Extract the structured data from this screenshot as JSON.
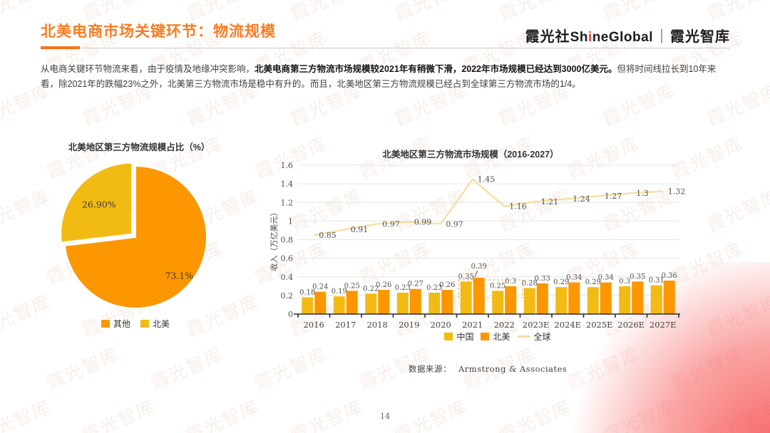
{
  "header": {
    "title": "北美电商市场关键环节：物流规模",
    "logo": {
      "cn": "霞光社",
      "en_pre": "Sh",
      "en_i": "i",
      "en_post": "neGlobal",
      "sep": "｜",
      "suffix": "霞光智库"
    }
  },
  "intro": {
    "pre": "从电商关键环节物流来看，由于疫情及地缘冲突影响，",
    "bold": "北美电商第三方物流市场规模较2021年有稍微下滑，2022年市场规模已经达到3000亿美元。",
    "post": "但将时间线拉长到10年来看，除2021年的跌幅23%之外，北美第三方物流市场是稳中有升的。而且，北美地区第三方物流规模已经占到全球第三方物流市场的1/4。"
  },
  "chart_data": [
    {
      "type": "pie",
      "title": "北美地区第三方物流规模占比（%）",
      "slices": [
        {
          "label": "其他",
          "value": 73.1,
          "display": "73.1%",
          "color": "#FC9601",
          "exploded": false
        },
        {
          "label": "北美",
          "value": 26.9,
          "display": "26.90%",
          "color": "#F2BB14",
          "exploded": true
        }
      ],
      "legend_position": "bottom"
    },
    {
      "type": "bar+line",
      "title": "北美地区第三方物流市场规模（2016-2027）",
      "ylabel": "收入（万亿美元）",
      "ylim": [
        0,
        1.6
      ],
      "ytick_step": 0.2,
      "grid": true,
      "legend_position": "bottom",
      "categories": [
        "2016",
        "2017",
        "2018",
        "2019",
        "2020",
        "2021",
        "2022",
        "2023E",
        "2024E",
        "2025E",
        "2026E",
        "2027E"
      ],
      "series": [
        {
          "name": "中国",
          "type": "bar",
          "color": "#F2BB14",
          "values": [
            0.18,
            0.19,
            0.22,
            0.23,
            0.23,
            0.35,
            0.25,
            0.28,
            0.29,
            0.29,
            0.3,
            0.31
          ]
        },
        {
          "name": "北美",
          "type": "bar",
          "color": "#FC9601",
          "values": [
            0.24,
            0.25,
            0.26,
            0.27,
            0.26,
            0.39,
            0.3,
            0.33,
            0.34,
            0.34,
            0.35,
            0.36
          ]
        },
        {
          "name": "全球",
          "type": "line",
          "color": "#F8DC9E",
          "values": [
            0.85,
            0.91,
            0.97,
            0.99,
            0.97,
            1.45,
            1.16,
            1.21,
            1.24,
            1.27,
            1.3,
            1.32
          ]
        }
      ],
      "annotation": {
        "highlight_years": [
          "2021",
          "2022"
        ]
      }
    }
  ],
  "source": {
    "label": "数据来源：",
    "value": "Armstrong & Associates"
  },
  "footer": {
    "page_number": "14"
  },
  "watermark_text": "霞光智库",
  "colors": {
    "accent_orange": "#FA7C22",
    "bar_orange": "#FC9601",
    "bar_yellow": "#F2BB14",
    "line_yellow": "#F8DC9E",
    "glow_red": "#F64949"
  }
}
